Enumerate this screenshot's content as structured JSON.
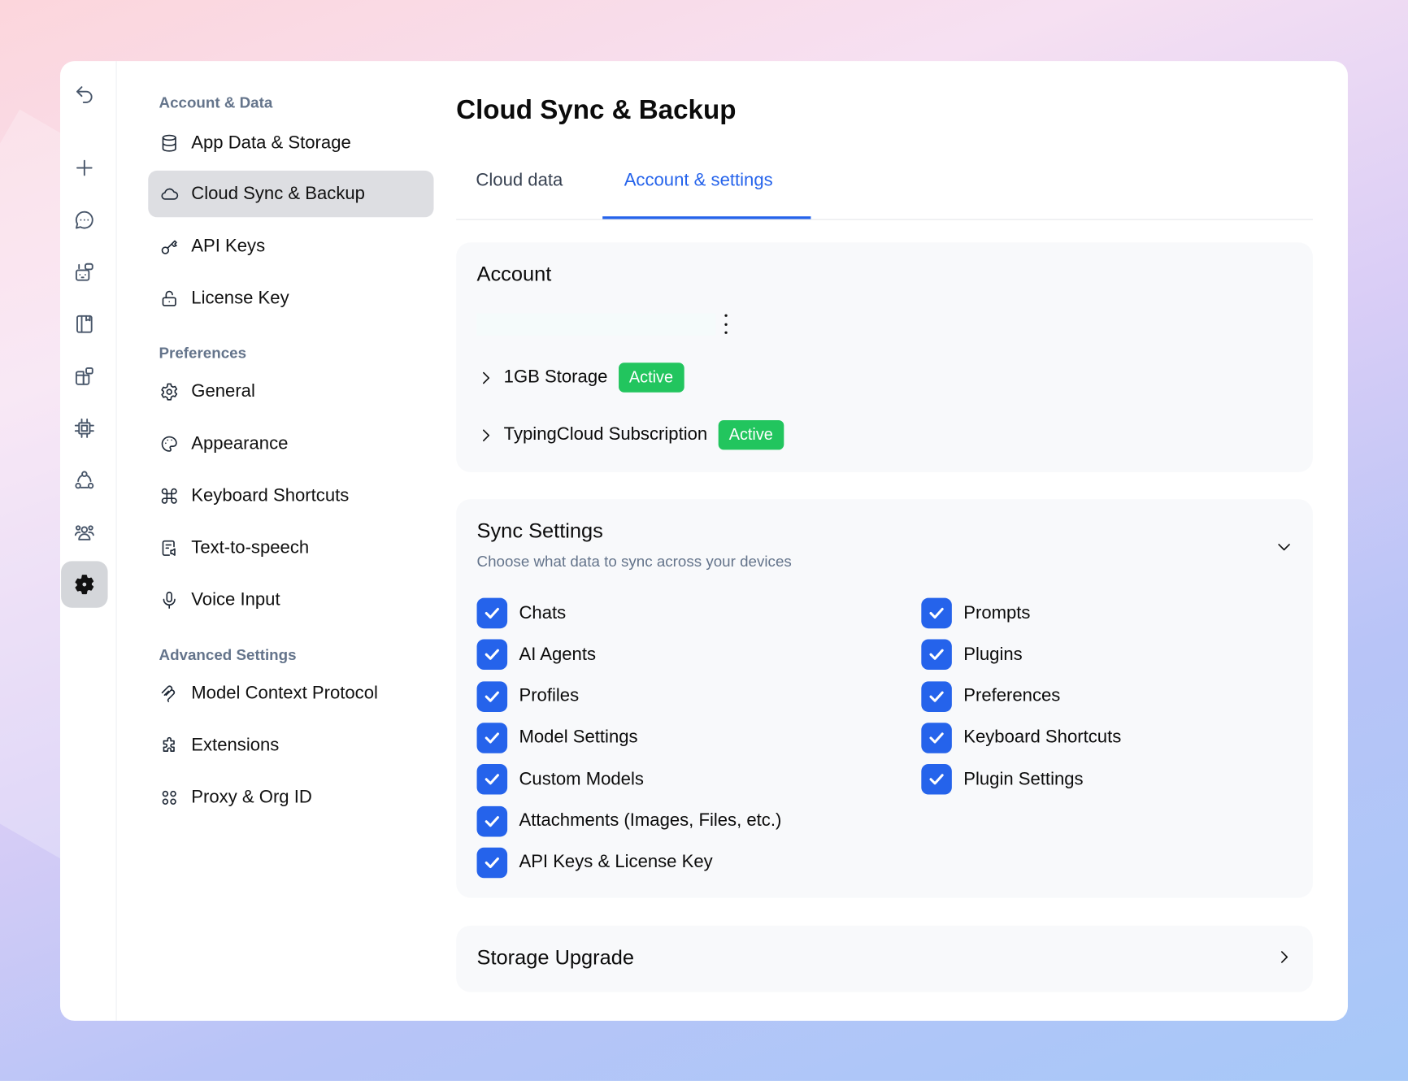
{
  "rail": {
    "icons": [
      "undo-icon",
      "plus-icon",
      "chat-icon",
      "agents-icon",
      "notebook-icon",
      "plugins-icon",
      "chip-icon",
      "connections-icon",
      "users-icon",
      "settings-icon"
    ],
    "active": "settings-icon"
  },
  "nav": {
    "sections": [
      {
        "title": "Account & Data",
        "items": [
          {
            "label": "App Data & Storage",
            "icon": "database-icon"
          },
          {
            "label": "Cloud Sync & Backup",
            "icon": "cloud-icon",
            "active": true
          },
          {
            "label": "API Keys",
            "icon": "key-icon"
          },
          {
            "label": "License Key",
            "icon": "unlock-icon"
          }
        ]
      },
      {
        "title": "Preferences",
        "items": [
          {
            "label": "General",
            "icon": "gear-icon"
          },
          {
            "label": "Appearance",
            "icon": "palette-icon"
          },
          {
            "label": "Keyboard Shortcuts",
            "icon": "command-icon"
          },
          {
            "label": "Text-to-speech",
            "icon": "speech-icon"
          },
          {
            "label": "Voice Input",
            "icon": "microphone-icon"
          }
        ]
      },
      {
        "title": "Advanced Settings",
        "items": [
          {
            "label": "Model Context Protocol",
            "icon": "mcp-icon"
          },
          {
            "label": "Extensions",
            "icon": "puzzle-icon"
          },
          {
            "label": "Proxy & Org ID",
            "icon": "proxy-icon"
          }
        ]
      }
    ]
  },
  "main": {
    "title": "Cloud Sync & Backup",
    "tabs": [
      {
        "label": "Cloud data"
      },
      {
        "label": "Account & settings",
        "active": true
      }
    ],
    "account": {
      "title": "Account",
      "rows": [
        {
          "label": "1GB Storage",
          "badge": "Active"
        },
        {
          "label": "TypingCloud Subscription",
          "badge": "Active"
        }
      ]
    },
    "sync": {
      "title": "Sync Settings",
      "subtitle": "Choose what data to sync across your devices",
      "left": [
        "Chats",
        "AI Agents",
        "Profiles",
        "Model Settings",
        "Custom Models",
        "Attachments (Images, Files, etc.)",
        "API Keys & License Key"
      ],
      "right": [
        "Prompts",
        "Plugins",
        "Preferences",
        "Keyboard Shortcuts",
        "Plugin Settings"
      ],
      "all_checked": true
    },
    "storage_upgrade": {
      "title": "Storage Upgrade"
    }
  },
  "colors": {
    "accent": "#2563eb",
    "badge": "#22c55e",
    "active_nav": "#dddee2"
  }
}
